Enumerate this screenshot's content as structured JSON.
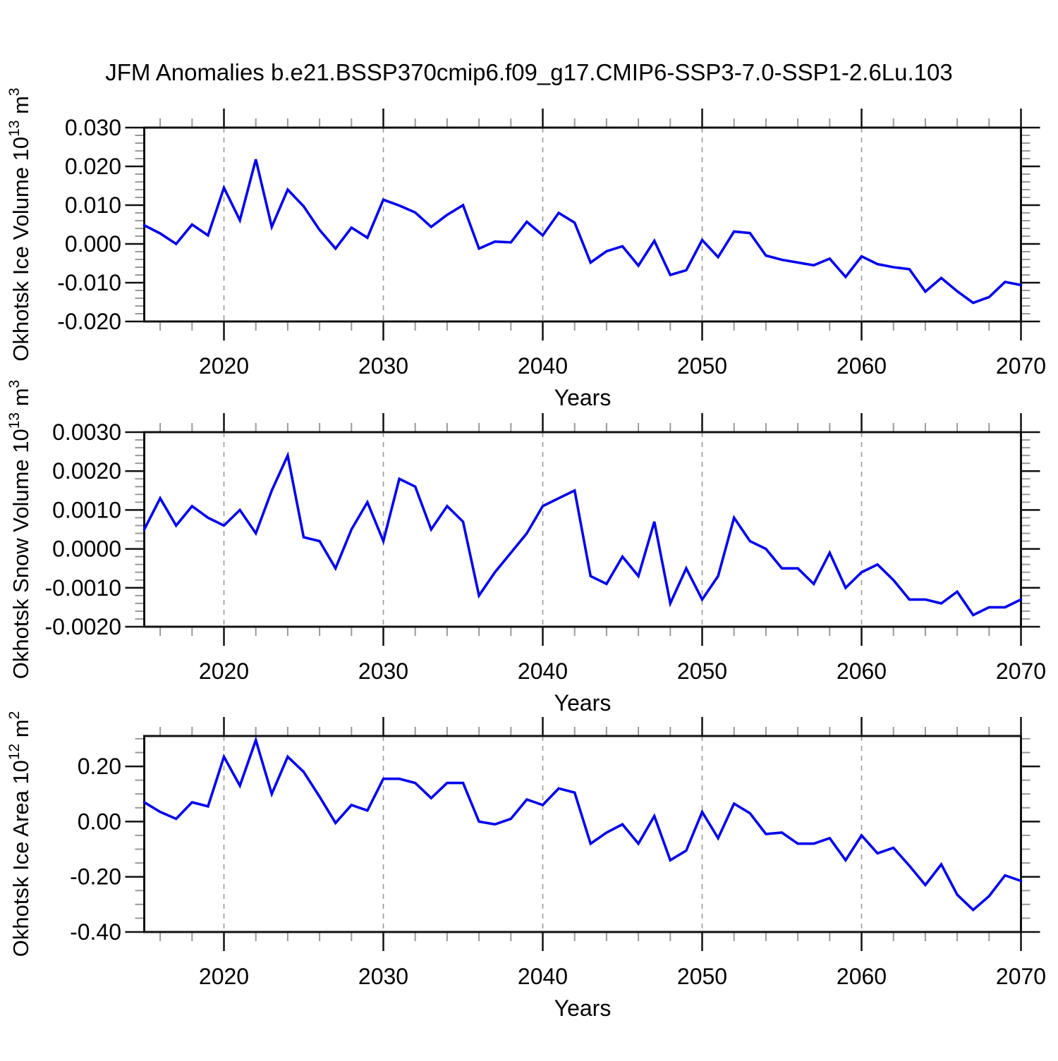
{
  "title": "JFM Anomalies b.e21.BSSP370cmip6.f09_g17.CMIP6-SSP3-7.0-SSP1-2.6Lu.103",
  "line_color": "#0000ee",
  "gridline_color": "#999999",
  "frame_color": "#111111",
  "minor_tick_color": "#999999",
  "chart_data": [
    {
      "type": "line",
      "name": "okhotsk-ice-volume",
      "ylabel": "Okhotsk Ice Volume 10^13 m^3",
      "ylabel_parts": [
        [
          "Okhotsk Ice Volume 10",
          false
        ],
        [
          "13",
          true
        ],
        [
          " m",
          false
        ],
        [
          "3",
          true
        ]
      ],
      "xlabel": "Years",
      "xlim": [
        2015,
        2070
      ],
      "ylim": [
        -0.02,
        0.03
      ],
      "xticks": [
        2020,
        2030,
        2040,
        2050,
        2060,
        2070
      ],
      "xtick_labels": [
        "2020",
        "2030",
        "2040",
        "2050",
        "2060",
        "2070"
      ],
      "x_minor_start": 2016,
      "x_minor_step": 2,
      "gridlines": [
        2020,
        2030,
        2040,
        2050,
        2060
      ],
      "yticks": [
        0.03,
        0.02,
        0.01,
        0.0,
        -0.01,
        -0.02
      ],
      "ytick_labels": [
        "0.030",
        "0.020",
        "0.010",
        "0.000",
        "-0.010",
        "-0.020"
      ],
      "yminor_step": 0.002,
      "yminor_per_major": 5,
      "x_start": 2015,
      "x_step": 1,
      "values": [
        0.0048,
        0.0027,
        0.0,
        0.005,
        0.0022,
        0.0145,
        0.0061,
        0.0218,
        0.0044,
        0.014,
        0.0097,
        0.0036,
        -0.0012,
        0.0042,
        0.0016,
        0.0114,
        0.0099,
        0.0081,
        0.0044,
        0.0075,
        0.01,
        -0.0012,
        0.0006,
        0.0004,
        0.0057,
        0.0022,
        0.008,
        0.0055,
        -0.0048,
        -0.0019,
        -0.0006,
        -0.0056,
        0.0008,
        -0.008,
        -0.0068,
        0.001,
        -0.0034,
        0.0032,
        0.0028,
        -0.003,
        -0.0041,
        -0.0048,
        -0.0055,
        -0.0038,
        -0.0085,
        -0.0032,
        -0.0052,
        -0.006,
        -0.0065,
        -0.0123,
        -0.0088,
        -0.0122,
        -0.0152,
        -0.0137,
        -0.0098,
        -0.0106
      ]
    },
    {
      "type": "line",
      "name": "okhotsk-snow-volume",
      "ylabel": "Okhotsk Snow Volume 10^13 m^3",
      "ylabel_parts": [
        [
          "Okhotsk Snow Volume 10",
          false
        ],
        [
          "13",
          true
        ],
        [
          " m",
          false
        ],
        [
          "3",
          true
        ]
      ],
      "xlabel": "Years",
      "xlim": [
        2015,
        2070
      ],
      "ylim": [
        -0.002,
        0.003
      ],
      "xticks": [
        2020,
        2030,
        2040,
        2050,
        2060,
        2070
      ],
      "xtick_labels": [
        "2020",
        "2030",
        "2040",
        "2050",
        "2060",
        "2070"
      ],
      "x_minor_start": 2016,
      "x_minor_step": 2,
      "gridlines": [
        2020,
        2030,
        2040,
        2050,
        2060
      ],
      "yticks": [
        0.003,
        0.002,
        0.001,
        0.0,
        -0.001,
        -0.002
      ],
      "ytick_labels": [
        "0.0030",
        "0.0020",
        "0.0010",
        "0.0000",
        "-0.0010",
        "-0.0020"
      ],
      "yminor_step": 0.0002,
      "yminor_per_major": 5,
      "x_start": 2015,
      "x_step": 1,
      "values": [
        0.0005,
        0.0013,
        0.0006,
        0.0011,
        0.0008,
        0.0006,
        0.001,
        0.0004,
        0.0015,
        0.0024,
        0.0003,
        0.0002,
        -0.0005,
        0.0005,
        0.0012,
        0.0002,
        0.0018,
        0.0016,
        0.0005,
        0.0011,
        0.0007,
        -0.0012,
        -0.0006,
        -0.0001,
        0.0004,
        0.0011,
        0.0013,
        0.0015,
        -0.0007,
        -0.0009,
        -0.0002,
        -0.0007,
        0.0007,
        -0.0014,
        -0.0005,
        -0.0013,
        -0.0007,
        0.0008,
        0.0002,
        0.0,
        -0.0005,
        -0.0005,
        -0.0009,
        -0.0001,
        -0.001,
        -0.0006,
        -0.0004,
        -0.0008,
        -0.0013,
        -0.0013,
        -0.0014,
        -0.0011,
        -0.0017,
        -0.0015,
        -0.0015,
        -0.0013
      ]
    },
    {
      "type": "line",
      "name": "okhotsk-ice-area",
      "ylabel": "Okhotsk Ice Area 10^12 m^2",
      "ylabel_parts": [
        [
          "Okhotsk Ice Area 10",
          false
        ],
        [
          "12",
          true
        ],
        [
          " m",
          false
        ],
        [
          "2",
          true
        ]
      ],
      "xlabel": "Years",
      "xlim": [
        2015,
        2070
      ],
      "ylim": [
        -0.4,
        0.31
      ],
      "xticks": [
        2020,
        2030,
        2040,
        2050,
        2060,
        2070
      ],
      "xtick_labels": [
        "2020",
        "2030",
        "2040",
        "2050",
        "2060",
        "2070"
      ],
      "x_minor_start": 2016,
      "x_minor_step": 2,
      "gridlines": [
        2020,
        2030,
        2040,
        2050,
        2060
      ],
      "yticks": [
        0.2,
        0.0,
        -0.2,
        -0.4
      ],
      "ytick_labels": [
        "0.20",
        "0.00",
        "-0.20",
        "-0.40"
      ],
      "yminor_step": 0.05,
      "yminor_per_major": 4,
      "x_start": 2015,
      "x_step": 1,
      "values": [
        0.07,
        0.035,
        0.01,
        0.07,
        0.055,
        0.235,
        0.13,
        0.295,
        0.1,
        0.235,
        0.18,
        0.09,
        -0.005,
        0.06,
        0.04,
        0.155,
        0.155,
        0.14,
        0.085,
        0.14,
        0.14,
        0.0,
        -0.01,
        0.01,
        0.08,
        0.06,
        0.12,
        0.105,
        -0.08,
        -0.04,
        -0.01,
        -0.08,
        0.02,
        -0.14,
        -0.105,
        0.035,
        -0.06,
        0.065,
        0.03,
        -0.045,
        -0.04,
        -0.08,
        -0.08,
        -0.06,
        -0.14,
        -0.05,
        -0.115,
        -0.095,
        -0.16,
        -0.23,
        -0.155,
        -0.265,
        -0.32,
        -0.27,
        -0.195,
        -0.215
      ]
    }
  ]
}
